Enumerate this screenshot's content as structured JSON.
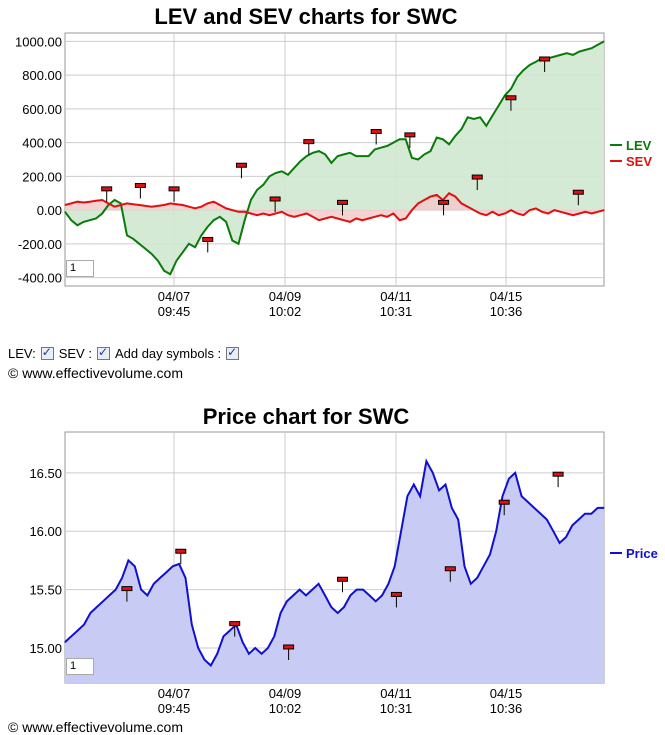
{
  "controls": {
    "lev_label": "LEV:",
    "sev_label": "SEV :",
    "day_symbols_label": "Add day symbols :"
  },
  "copyright": "© www.effectivevolume.com",
  "zoom_value": "1",
  "colors": {
    "lev": "#0a7a0a",
    "lev_fill": "#cfe8cf",
    "sev": "#e01010",
    "sev_fill": "#f4c8c8",
    "price": "#1010d0",
    "price_fill": "#c8ccf4",
    "grid": "#cccccc",
    "marker_fill": "#e01010",
    "marker_border": "#000000"
  },
  "chart_data": [
    {
      "type": "line",
      "title": "LEV and SEV charts for SWC",
      "x_ticks": [
        {
          "date": "04/07",
          "time": "09:45"
        },
        {
          "date": "04/09",
          "time": "10:02"
        },
        {
          "date": "04/11",
          "time": "10:31"
        },
        {
          "date": "04/15",
          "time": "10:36"
        }
      ],
      "y_ticks": [
        "1000.00",
        "800.00",
        "600.00",
        "400.00",
        "200.00",
        "0.00",
        "-200.00",
        "-400.00"
      ],
      "ylim": [
        -450,
        1050
      ],
      "grid": true,
      "legend_position": "right",
      "series": [
        {
          "name": "LEV",
          "values": [
            -10,
            -60,
            -90,
            -70,
            -60,
            -50,
            -20,
            30,
            60,
            40,
            -150,
            -170,
            -200,
            -230,
            -260,
            -300,
            -360,
            -380,
            -300,
            -250,
            -200,
            -220,
            -150,
            -100,
            -60,
            -40,
            -70,
            -180,
            -200,
            -60,
            60,
            120,
            150,
            200,
            220,
            230,
            210,
            250,
            290,
            320,
            340,
            350,
            330,
            280,
            320,
            330,
            340,
            320,
            320,
            320,
            360,
            370,
            380,
            400,
            420,
            420,
            310,
            300,
            330,
            350,
            430,
            420,
            390,
            440,
            480,
            550,
            540,
            550,
            500,
            560,
            620,
            680,
            720,
            790,
            830,
            860,
            880,
            900,
            900,
            910,
            920,
            930,
            920,
            940,
            950,
            960,
            980,
            1000
          ]
        },
        {
          "name": "SEV",
          "values": [
            30,
            40,
            50,
            45,
            50,
            55,
            60,
            40,
            20,
            30,
            40,
            35,
            30,
            25,
            20,
            25,
            30,
            40,
            35,
            30,
            20,
            10,
            20,
            40,
            50,
            30,
            10,
            0,
            -10,
            -10,
            -20,
            -30,
            -20,
            -30,
            -20,
            -10,
            -30,
            -40,
            -30,
            -20,
            -40,
            -60,
            -50,
            -40,
            -50,
            -60,
            -70,
            -50,
            -60,
            -50,
            -40,
            -30,
            -40,
            -20,
            -60,
            -50,
            0,
            40,
            60,
            80,
            90,
            60,
            100,
            80,
            40,
            20,
            0,
            -20,
            -30,
            -10,
            -30,
            -20,
            0,
            -20,
            -30,
            0,
            10,
            -10,
            -20,
            0,
            -10,
            -20,
            -30,
            -20,
            -10,
            -20,
            -10,
            0
          ]
        }
      ],
      "day_marker_values": [
        120,
        140,
        120,
        -180,
        260,
        60,
        400,
        40,
        460,
        440,
        40,
        190,
        660,
        890,
        100
      ]
    },
    {
      "type": "area",
      "title": "Price chart for SWC",
      "x_ticks": [
        {
          "date": "04/07",
          "time": "09:45"
        },
        {
          "date": "04/09",
          "time": "10:02"
        },
        {
          "date": "04/11",
          "time": "10:31"
        },
        {
          "date": "04/15",
          "time": "10:36"
        }
      ],
      "y_ticks": [
        "16.50",
        "16.00",
        "15.50",
        "15.00"
      ],
      "ylim": [
        14.7,
        16.85
      ],
      "grid": true,
      "legend_position": "right",
      "series": [
        {
          "name": "Price",
          "values": [
            15.05,
            15.1,
            15.15,
            15.2,
            15.3,
            15.35,
            15.4,
            15.45,
            15.5,
            15.6,
            15.75,
            15.7,
            15.5,
            15.45,
            15.55,
            15.6,
            15.65,
            15.7,
            15.72,
            15.6,
            15.2,
            15.0,
            14.9,
            14.85,
            14.95,
            15.1,
            15.15,
            15.2,
            15.05,
            14.95,
            15.0,
            14.95,
            15.0,
            15.1,
            15.3,
            15.4,
            15.45,
            15.5,
            15.45,
            15.5,
            15.55,
            15.45,
            15.35,
            15.3,
            15.35,
            15.45,
            15.5,
            15.5,
            15.45,
            15.4,
            15.45,
            15.55,
            15.7,
            16.0,
            16.3,
            16.4,
            16.3,
            16.6,
            16.5,
            16.35,
            16.4,
            16.2,
            16.1,
            15.7,
            15.55,
            15.6,
            15.7,
            15.8,
            16.0,
            16.3,
            16.45,
            16.5,
            16.3,
            16.25,
            16.2,
            16.15,
            16.1,
            16.0,
            15.9,
            15.95,
            16.05,
            16.1,
            16.15,
            16.15,
            16.2,
            16.2
          ]
        }
      ],
      "day_marker_values": [
        15.5,
        15.82,
        15.2,
        15.0,
        15.58,
        15.45,
        15.67,
        16.24,
        16.48
      ]
    }
  ]
}
